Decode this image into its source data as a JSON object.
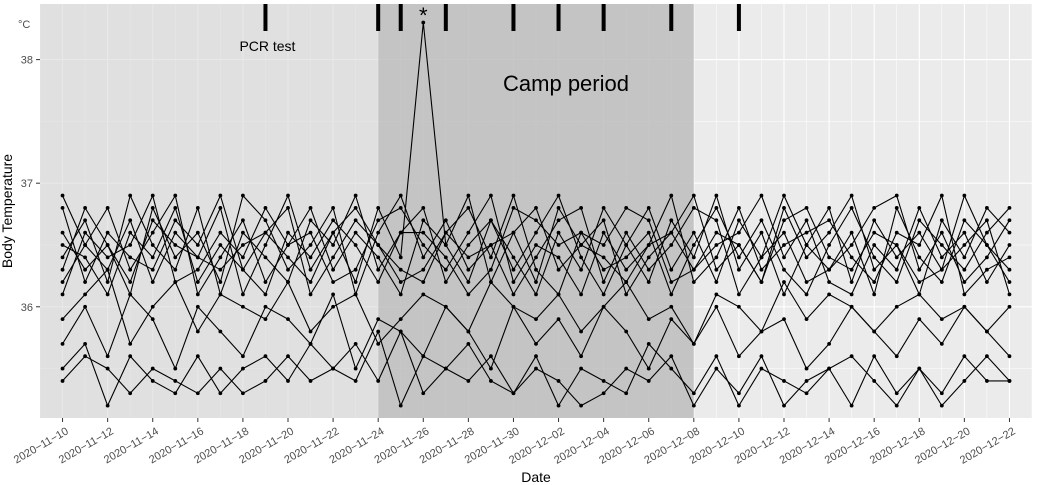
{
  "chart_data": {
    "type": "line",
    "xlabel": "Date",
    "ylabel": "Body Temperature",
    "unit_label": "°C",
    "x_start": "2020-11-10",
    "x_end": "2020-12-22",
    "xlim": [
      "2020-11-09",
      "2020-12-23"
    ],
    "ylim": [
      35.1,
      38.45
    ],
    "y_ticks": [
      36,
      37,
      38
    ],
    "x_tick_labels": [
      "2020-11-10",
      "2020-11-12",
      "2020-11-14",
      "2020-11-16",
      "2020-11-18",
      "2020-11-20",
      "2020-11-22",
      "2020-11-24",
      "2020-11-26",
      "2020-11-28",
      "2020-11-30",
      "2020-12-02",
      "2020-12-04",
      "2020-12-06",
      "2020-12-08",
      "2020-12-10",
      "2020-12-12",
      "2020-12-14",
      "2020-12-16",
      "2020-12-18",
      "2020-12-20",
      "2020-12-22"
    ],
    "pcr_test_label": "PCR test",
    "pcr_test_dates": [
      "2020-11-19",
      "2020-11-24",
      "2020-11-25",
      "2020-11-27",
      "2020-11-30",
      "2020-12-02",
      "2020-12-04",
      "2020-12-07",
      "2020-12-10"
    ],
    "camp_period_label": "Camp period",
    "camp_period": [
      "2020-11-24",
      "2020-12-08"
    ],
    "peak_marker": "*",
    "peak_point": {
      "date": "2020-11-26",
      "value": 38.3
    },
    "grid": true,
    "series": [
      {
        "values": [
          36.9,
          36.5,
          36.3,
          36.7,
          36.2,
          36.6,
          36.4,
          36.8,
          36.1,
          36.5,
          36.9,
          36.3,
          36.6,
          36.2,
          36.8,
          36.4,
          38.3,
          36.5,
          36.2,
          36.7,
          36.3,
          36.6,
          36.9,
          36.4,
          36.1,
          36.5,
          36.8,
          36.3,
          36.6,
          36.2,
          36.7,
          36.4,
          36.9,
          36.5,
          36.3,
          36.6,
          36.1,
          36.8,
          36.4,
          36.2,
          36.7,
          36.5,
          36.3
        ]
      },
      {
        "values": [
          36.4,
          36.7,
          36.2,
          36.9,
          36.5,
          36.3,
          36.8,
          36.1,
          36.6,
          36.4,
          36.2,
          36.7,
          36.5,
          36.9,
          36.3,
          36.6,
          36.8,
          36.2,
          36.5,
          36.7,
          36.4,
          36.1,
          36.6,
          36.3,
          36.8,
          36.5,
          36.2,
          36.7,
          36.4,
          36.9,
          36.3,
          36.6,
          36.1,
          36.5,
          36.8,
          36.2,
          36.7,
          36.4,
          36.6,
          36.3,
          36.9,
          36.5,
          36.2
        ]
      },
      {
        "values": [
          36.2,
          36.5,
          36.8,
          36.3,
          36.6,
          36.9,
          36.1,
          36.4,
          36.7,
          36.2,
          36.5,
          36.8,
          36.3,
          36.6,
          36.4,
          36.1,
          36.7,
          36.5,
          36.9,
          36.2,
          36.6,
          36.8,
          36.3,
          36.5,
          36.7,
          36.1,
          36.4,
          36.6,
          36.9,
          36.3,
          36.5,
          36.2,
          36.8,
          36.4,
          36.6,
          36.9,
          36.3,
          36.5,
          36.1,
          36.7,
          36.4,
          36.8,
          36.6
        ]
      },
      {
        "values": [
          36.6,
          36.3,
          36.5,
          36.1,
          36.8,
          36.4,
          36.6,
          36.2,
          36.9,
          36.7,
          36.3,
          36.5,
          36.8,
          36.1,
          36.6,
          36.9,
          36.4,
          36.7,
          36.3,
          36.5,
          36.1,
          36.4,
          36.7,
          36.8,
          36.2,
          36.6,
          36.3,
          36.5,
          36.8,
          36.7,
          36.1,
          36.4,
          36.6,
          36.2,
          36.3,
          36.5,
          36.8,
          36.9,
          36.3,
          36.6,
          36.2,
          36.4,
          36.7
        ]
      },
      {
        "values": [
          36.8,
          36.2,
          36.6,
          36.4,
          36.3,
          36.7,
          36.5,
          36.9,
          36.3,
          36.6,
          36.8,
          36.1,
          36.4,
          36.7,
          36.5,
          36.3,
          36.2,
          36.6,
          36.8,
          36.4,
          36.9,
          36.3,
          36.1,
          36.6,
          36.5,
          36.8,
          36.7,
          36.2,
          36.3,
          36.5,
          36.6,
          36.9,
          36.4,
          36.7,
          36.2,
          36.1,
          36.5,
          36.3,
          36.8,
          36.4,
          36.6,
          36.2,
          36.5
        ]
      },
      {
        "values": [
          36.1,
          36.6,
          36.4,
          36.5,
          36.9,
          36.2,
          36.3,
          36.6,
          36.4,
          36.8,
          36.5,
          36.6,
          36.2,
          36.3,
          36.7,
          36.8,
          36.5,
          36.3,
          36.6,
          36.9,
          36.2,
          36.5,
          36.4,
          36.1,
          36.6,
          36.3,
          36.5,
          36.9,
          36.2,
          36.4,
          36.8,
          36.3,
          36.5,
          36.6,
          36.7,
          36.4,
          36.2,
          36.6,
          36.5,
          36.9,
          36.1,
          36.3,
          36.4
        ]
      },
      {
        "values": [
          36.5,
          36.4,
          36.1,
          36.6,
          36.4,
          36.8,
          36.2,
          36.5,
          36.3,
          36.1,
          36.6,
          36.4,
          36.7,
          36.5,
          36.2,
          36.6,
          36.6,
          36.4,
          36.1,
          36.3,
          36.8,
          36.7,
          36.5,
          36.6,
          36.3,
          36.4,
          36.6,
          36.1,
          36.5,
          36.8,
          36.4,
          36.7,
          36.3,
          36.1,
          36.5,
          36.8,
          36.4,
          36.2,
          36.7,
          36.5,
          36.3,
          36.6,
          36.8
        ]
      },
      {
        "values": [
          36.3,
          36.8,
          36.5,
          36.2,
          36.7,
          36.5,
          36.4,
          36.3,
          36.5,
          36.6,
          36.4,
          36.2,
          36.6,
          36.8,
          36.5,
          36.2,
          36.3,
          36.6,
          36.4,
          36.5,
          36.6,
          36.2,
          36.8,
          36.5,
          36.4,
          36.2,
          36.5,
          36.6,
          36.3,
          36.6,
          36.5,
          36.2,
          36.7,
          36.8,
          36.4,
          36.3,
          36.6,
          36.5,
          36.2,
          36.3,
          36.5,
          36.7,
          36.1
        ]
      },
      {
        "values": [
          35.9,
          36.1,
          36.3,
          35.7,
          36.0,
          36.2,
          35.8,
          36.1,
          36.0,
          35.9,
          36.2,
          35.8,
          36.0,
          36.1,
          35.7,
          35.9,
          36.1,
          36.0,
          35.8,
          36.2,
          36.0,
          35.9,
          36.1,
          35.8,
          36.0,
          36.2,
          35.9,
          36.0,
          35.7,
          36.1,
          36.0,
          35.8,
          36.2,
          35.9,
          36.1,
          36.0,
          35.8,
          36.0,
          36.1,
          35.9,
          36.0,
          35.8,
          36.0
        ]
      },
      {
        "values": [
          35.7,
          36.0,
          35.6,
          36.1,
          35.9,
          35.5,
          36.0,
          35.8,
          35.6,
          36.0,
          35.9,
          35.7,
          36.1,
          35.5,
          35.9,
          35.8,
          35.6,
          36.0,
          35.8,
          35.5,
          36.0,
          35.7,
          35.9,
          35.6,
          36.0,
          35.8,
          35.5,
          35.9,
          35.7,
          36.0,
          35.6,
          35.8,
          35.9,
          35.5,
          35.7,
          36.0,
          35.8,
          35.6,
          35.9,
          35.7,
          36.0,
          35.8,
          35.6
        ]
      },
      {
        "values": [
          35.5,
          35.7,
          35.2,
          35.6,
          35.4,
          35.3,
          35.6,
          35.3,
          35.5,
          35.6,
          35.4,
          35.7,
          35.5,
          35.4,
          35.8,
          35.2,
          35.6,
          35.5,
          35.7,
          35.4,
          35.3,
          35.6,
          35.2,
          35.5,
          35.4,
          35.3,
          35.7,
          35.5,
          35.3,
          35.6,
          35.2,
          35.5,
          35.4,
          35.3,
          35.5,
          35.6,
          35.4,
          35.2,
          35.5,
          35.3,
          35.6,
          35.4,
          35.4
        ]
      },
      {
        "values": [
          35.4,
          35.6,
          35.5,
          35.3,
          35.5,
          35.4,
          35.3,
          35.5,
          35.3,
          35.4,
          35.6,
          35.4,
          35.5,
          35.7,
          35.4,
          35.8,
          35.3,
          35.5,
          35.4,
          35.6,
          35.3,
          35.5,
          35.4,
          35.2,
          35.3,
          35.5,
          35.4,
          35.6,
          35.2,
          35.5,
          35.3,
          35.6,
          35.2,
          35.4,
          35.5,
          35.2,
          35.6,
          35.3,
          35.5,
          35.2,
          35.4,
          35.6,
          35.4
        ]
      }
    ]
  }
}
